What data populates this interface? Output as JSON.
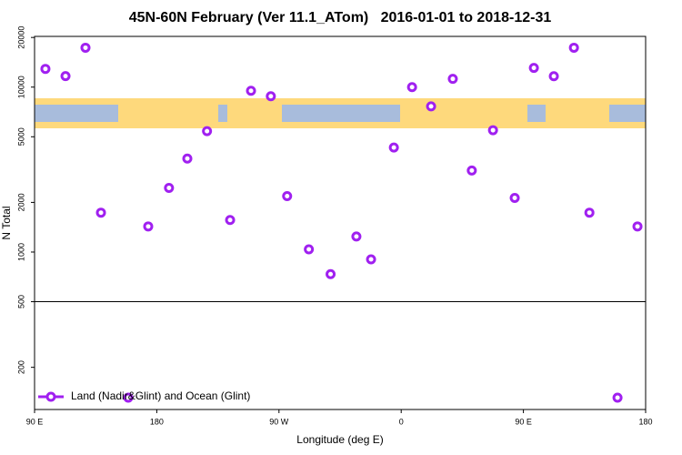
{
  "chart_data": {
    "type": "scatter",
    "title": "45N-60N February (Ver 11.1_ATom)   2016-01-01 to 2018-12-31",
    "x_label": "Longitude (deg E)",
    "y_label": "N Total",
    "log_y": true,
    "hline": 500,
    "legend": "bottom-left",
    "xlim": [
      90,
      540
    ],
    "xticks": [
      {
        "value": 90,
        "label": "90 E"
      },
      {
        "value": 180,
        "label": "180"
      },
      {
        "value": 270,
        "label": "90 W"
      },
      {
        "value": 360,
        "label": "0"
      },
      {
        "value": 450,
        "label": "90 E"
      },
      {
        "value": 540,
        "label": "180"
      }
    ],
    "ylim": [
      111,
      20300
    ],
    "yticks": [
      200,
      500,
      1000,
      2000,
      5000,
      10000,
      20000
    ],
    "series": [
      {
        "name": "Land (Nadir&Glint) and Ocean (Glint)",
        "color": "#a020f0",
        "x": [
          98,
          112.8,
          127.5,
          138.9,
          159,
          173.7,
          189,
          202.5,
          217,
          234,
          249.4,
          264,
          276,
          292,
          308,
          327,
          337.8,
          354.6,
          368,
          382,
          398,
          412,
          427.6,
          443.6,
          457.7,
          472.4,
          487.2,
          498.6,
          519.3,
          534
        ],
        "values": [
          12900,
          11660,
          17330,
          1733,
          131,
          1430,
          2448,
          3687,
          5410,
          1564,
          9500,
          8800,
          2183,
          1039,
          735,
          1243,
          903,
          4300,
          10000,
          7640,
          11220,
          3120,
          5480,
          2130,
          13080,
          11650,
          17330,
          1733,
          131,
          1430
        ]
      }
    ]
  }
}
